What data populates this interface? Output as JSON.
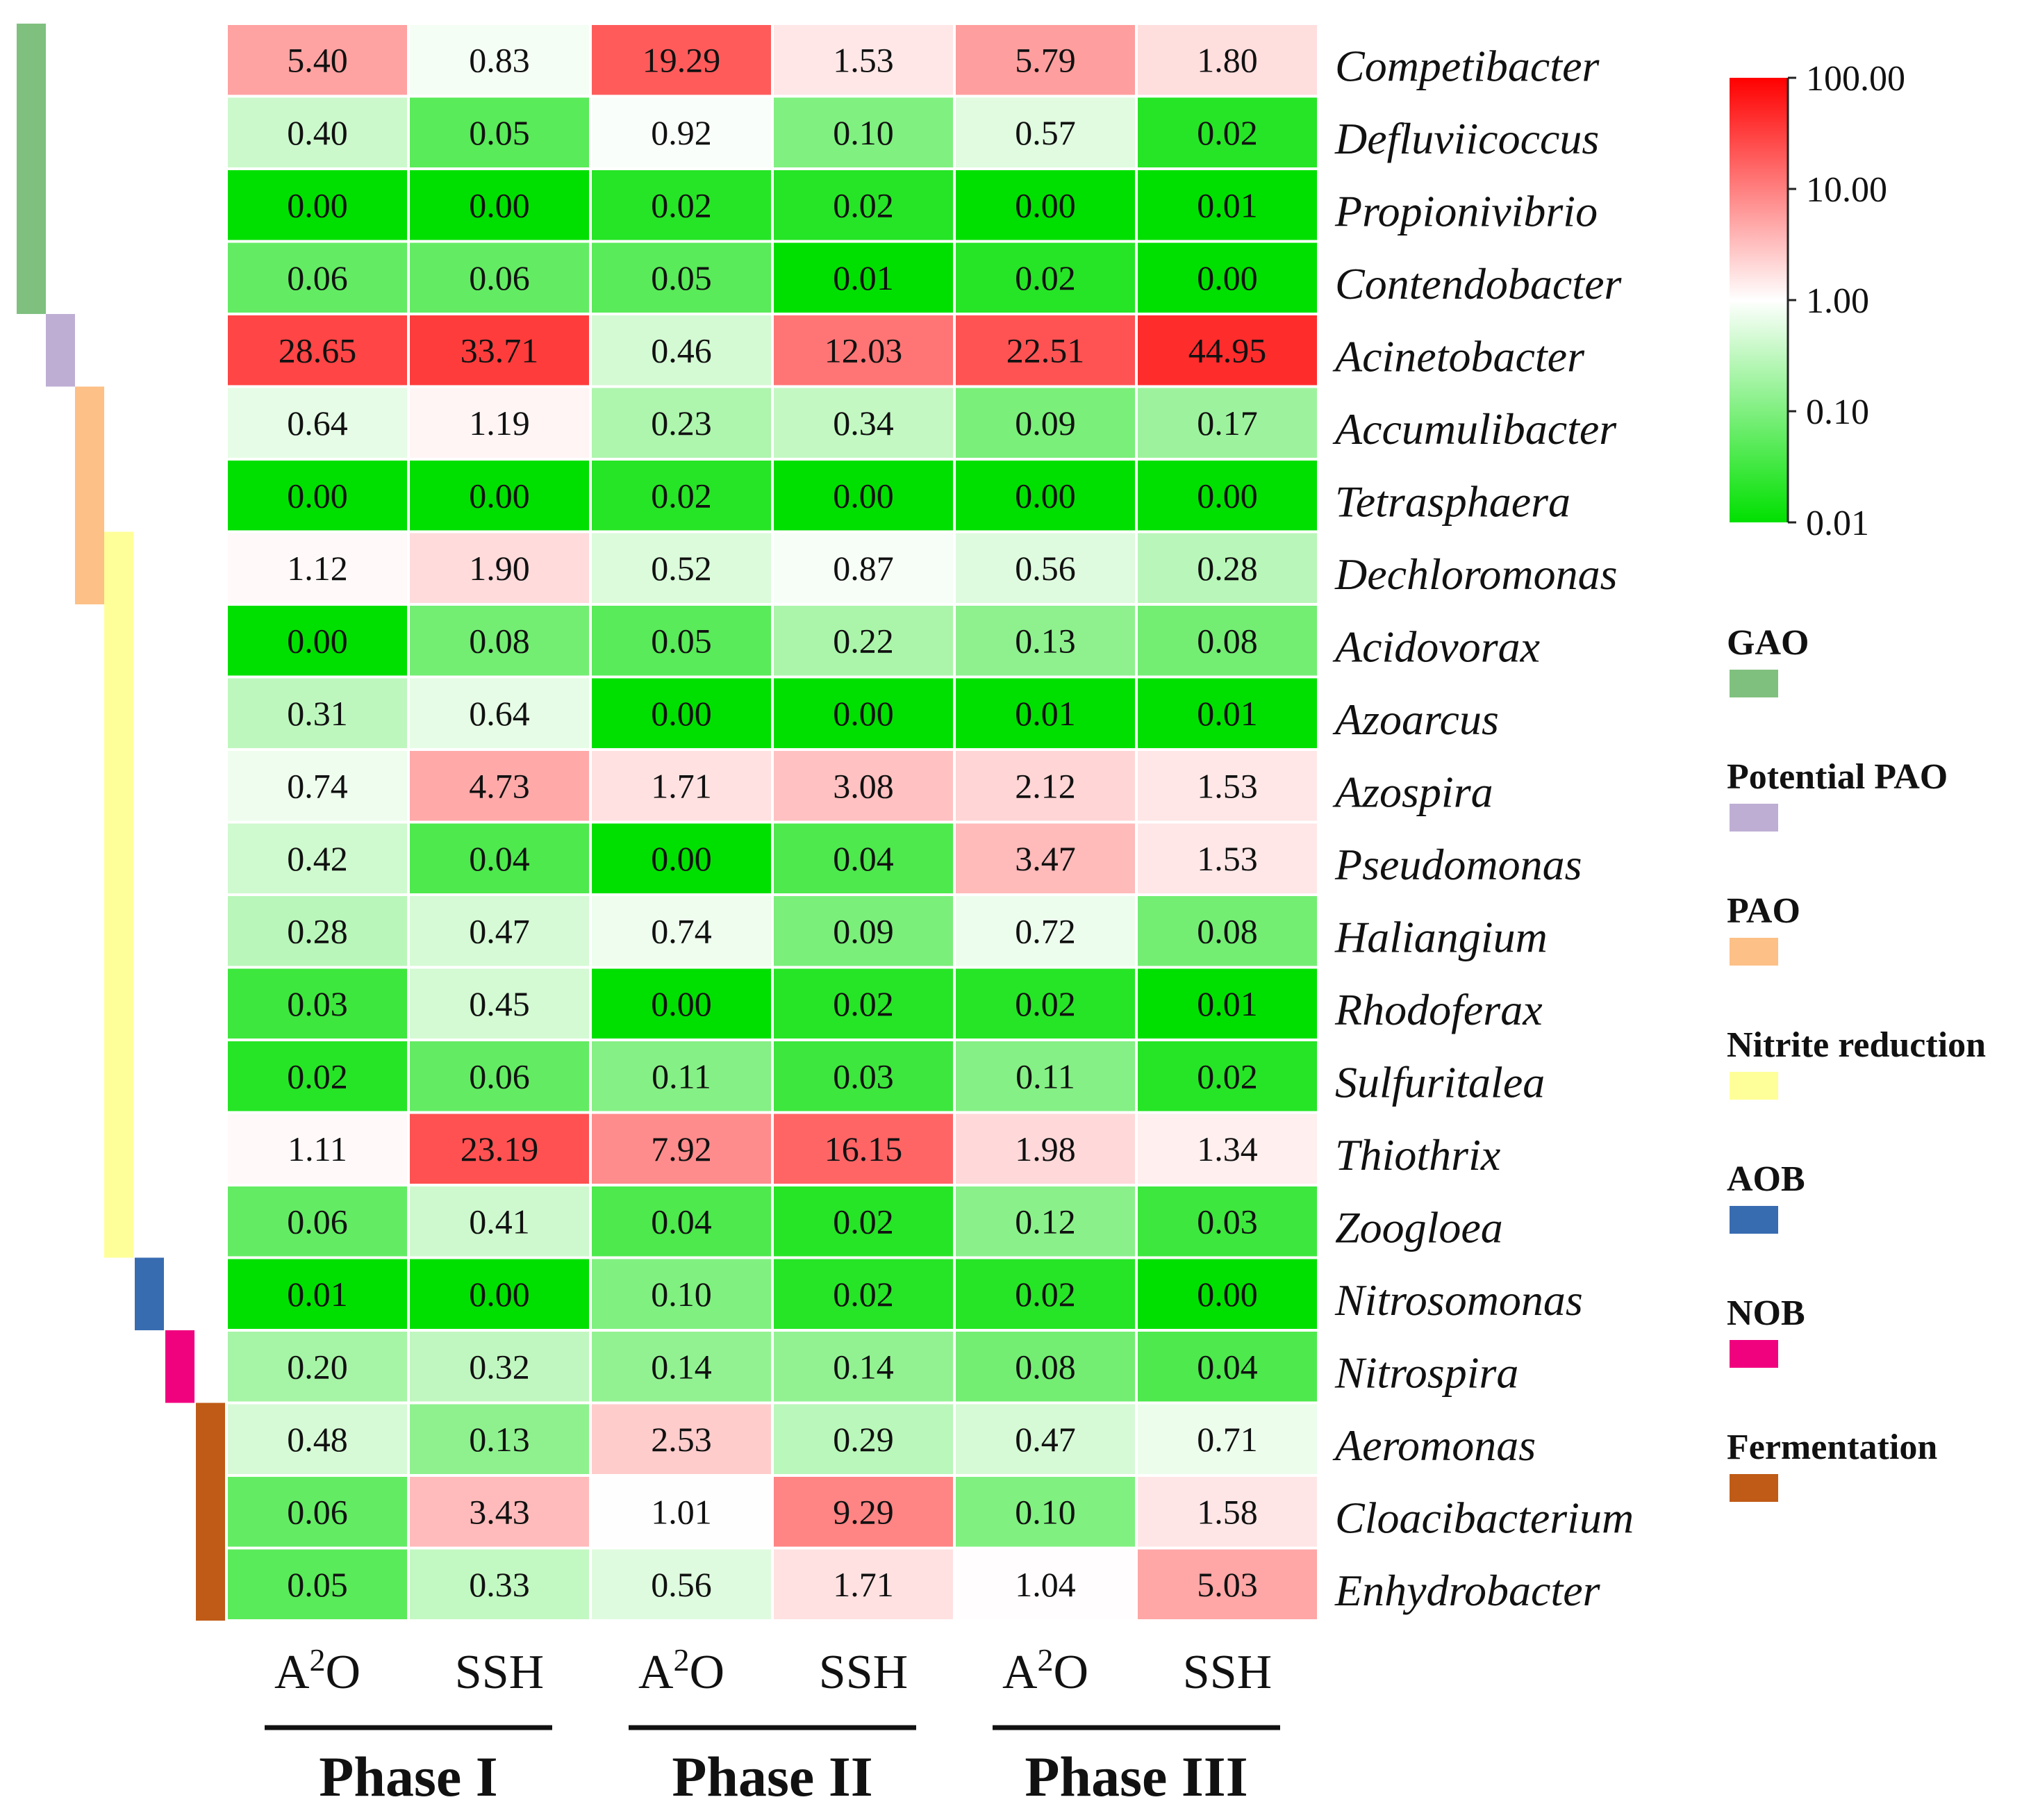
{
  "chart_data": {
    "type": "heatmap",
    "color_scale": "log",
    "rows": [
      "Competibacter",
      "Defluviicoccus",
      "Propionivibrio",
      "Contendobacter",
      "Acinetobacter",
      "Accumulibacter",
      "Tetrasphaera",
      "Dechloromonas",
      "Acidovorax",
      "Azoarcus",
      "Azospira",
      "Pseudomonas",
      "Haliangium",
      "Rhodoferax",
      "Sulfuritalea",
      "Thiothrix",
      "Zoogloea",
      "Nitrosomonas",
      "Nitrospira",
      "Aeromonas",
      "Cloacibacterium",
      "Enhydrobacter"
    ],
    "columns": [
      "A2O",
      "SSH",
      "A2O",
      "SSH",
      "A2O",
      "SSH"
    ],
    "phases": [
      {
        "label": "Phase I",
        "columns": [
          0,
          1
        ]
      },
      {
        "label": "Phase II",
        "columns": [
          2,
          3
        ]
      },
      {
        "label": "Phase III",
        "columns": [
          4,
          5
        ]
      }
    ],
    "values": [
      [
        5.4,
        0.83,
        19.29,
        1.53,
        5.79,
        1.8
      ],
      [
        0.4,
        0.05,
        0.92,
        0.1,
        0.57,
        0.02
      ],
      [
        0.0,
        0.0,
        0.02,
        0.02,
        0.0,
        0.01
      ],
      [
        0.06,
        0.06,
        0.05,
        0.01,
        0.02,
        0.0
      ],
      [
        28.65,
        33.71,
        0.46,
        12.03,
        22.51,
        44.95
      ],
      [
        0.64,
        1.19,
        0.23,
        0.34,
        0.09,
        0.17
      ],
      [
        0.0,
        0.0,
        0.02,
        0.0,
        0.0,
        0.0
      ],
      [
        1.12,
        1.9,
        0.52,
        0.87,
        0.56,
        0.28
      ],
      [
        0.0,
        0.08,
        0.05,
        0.22,
        0.13,
        0.08
      ],
      [
        0.31,
        0.64,
        0.0,
        0.0,
        0.01,
        0.01
      ],
      [
        0.74,
        4.73,
        1.71,
        3.08,
        2.12,
        1.53
      ],
      [
        0.42,
        0.04,
        0.0,
        0.04,
        3.47,
        1.53
      ],
      [
        0.28,
        0.47,
        0.74,
        0.09,
        0.72,
        0.08
      ],
      [
        0.03,
        0.45,
        0.0,
        0.02,
        0.02,
        0.01
      ],
      [
        0.02,
        0.06,
        0.11,
        0.03,
        0.11,
        0.02
      ],
      [
        1.11,
        23.19,
        7.92,
        16.15,
        1.98,
        1.34
      ],
      [
        0.06,
        0.41,
        0.04,
        0.02,
        0.12,
        0.03
      ],
      [
        0.01,
        0.0,
        0.1,
        0.02,
        0.02,
        0.0
      ],
      [
        0.2,
        0.32,
        0.14,
        0.14,
        0.08,
        0.04
      ],
      [
        0.48,
        0.13,
        2.53,
        0.29,
        0.47,
        0.71
      ],
      [
        0.06,
        3.43,
        1.01,
        9.29,
        0.1,
        1.58
      ],
      [
        0.05,
        0.33,
        0.56,
        1.71,
        1.04,
        5.03
      ]
    ],
    "color_scale_ticks": [
      "100.00",
      "10.00",
      "1.00",
      "0.10",
      "0.01"
    ],
    "color_scale_min": 0.01,
    "color_scale_max": 100,
    "colors": {
      "low": "#00e000",
      "mid": "#ffffff",
      "high": "#ff0000"
    },
    "groups": [
      {
        "name": "GAO",
        "color": "#7fc07f",
        "rows": [
          0,
          3
        ]
      },
      {
        "name": "Potential PAO",
        "color": "#beaed4",
        "rows": [
          4,
          4
        ]
      },
      {
        "name": "PAO",
        "color": "#fdc086",
        "rows": [
          5,
          7
        ]
      },
      {
        "name": "Nitrite reduction",
        "color": "#ffff99",
        "rows": [
          7,
          16
        ]
      },
      {
        "name": "AOB",
        "color": "#386cb0",
        "rows": [
          17,
          17
        ]
      },
      {
        "name": "NOB",
        "color": "#f0027f",
        "rows": [
          18,
          18
        ]
      },
      {
        "name": "Fermentation",
        "color": "#bf5b17",
        "rows": [
          19,
          21
        ]
      }
    ]
  }
}
